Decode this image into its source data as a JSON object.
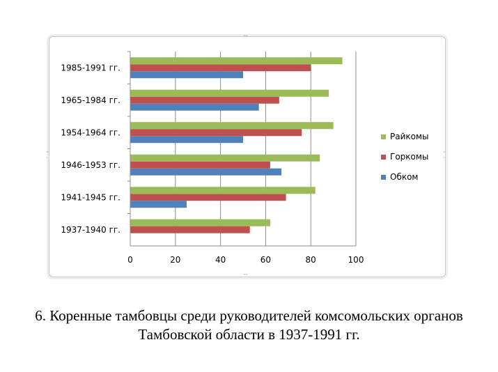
{
  "caption": {
    "line1": "6. Коренные тамбовцы среди руководителей комсомольских органов",
    "line2": "Тамбовской области в 1937-1991 гг."
  },
  "chart_data": {
    "type": "bar",
    "orientation": "horizontal",
    "categories": [
      "1937-1940  гг.",
      "1941-1945  гг.",
      "1946-1953  гг.",
      "1954-1964  гг.",
      "1965-1984  гг.",
      "1985-1991  гг."
    ],
    "series": [
      {
        "name": "Обком",
        "color": "#4f81bd",
        "values": [
          0,
          25,
          67,
          50,
          57,
          50
        ]
      },
      {
        "name": "Горкомы",
        "color": "#c0504d",
        "values": [
          53,
          69,
          62,
          76,
          66,
          80
        ]
      },
      {
        "name": "Райкомы",
        "color": "#9bbb59",
        "values": [
          62,
          82,
          84,
          90,
          88,
          94
        ]
      }
    ],
    "xlim": [
      0,
      100
    ],
    "xticks": [
      0,
      20,
      40,
      60,
      80,
      100
    ],
    "grid": true,
    "legend": "right"
  }
}
